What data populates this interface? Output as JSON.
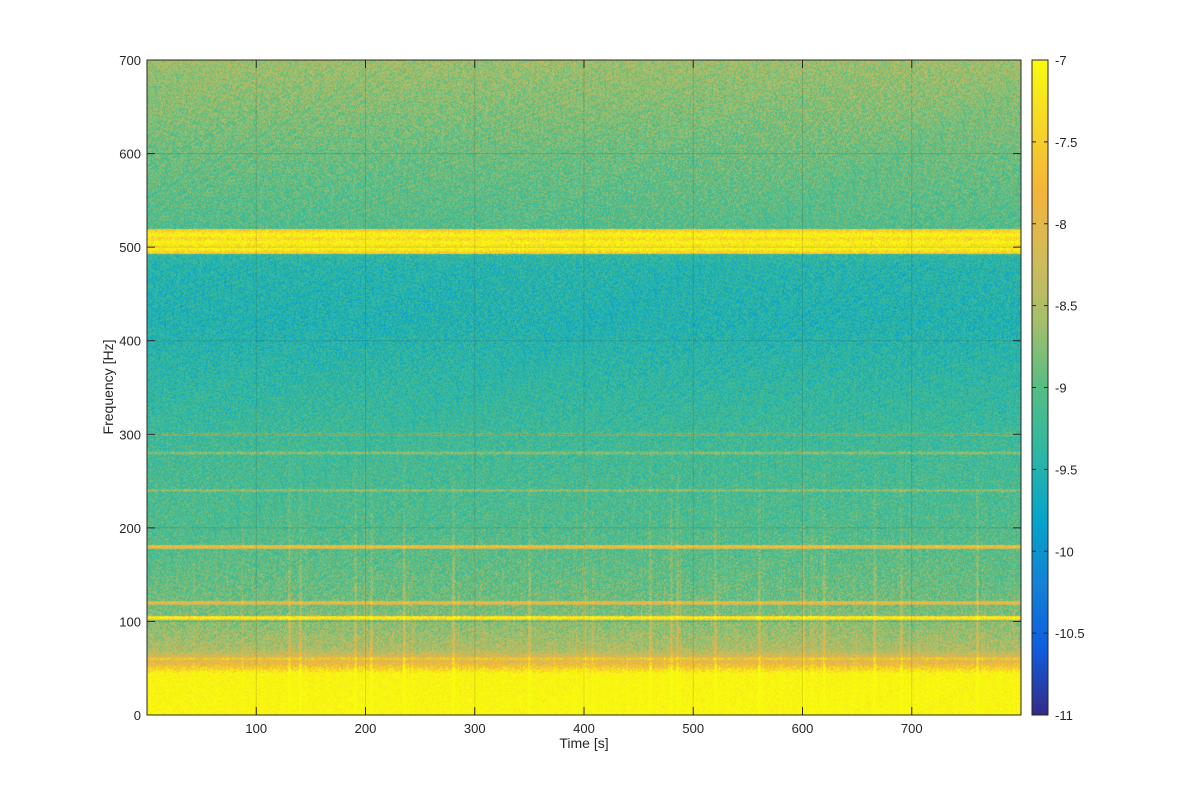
{
  "chart_data": {
    "type": "heatmap",
    "title": "",
    "xlabel": "Time [s]",
    "ylabel": "Frequency [Hz]",
    "xlim": [
      0,
      800
    ],
    "ylim": [
      0,
      700
    ],
    "x_ticks": [
      100,
      200,
      300,
      400,
      500,
      600,
      700
    ],
    "y_ticks": [
      0,
      100,
      200,
      300,
      400,
      500,
      600,
      700
    ],
    "x_tick_labels": [
      "100",
      "200",
      "300",
      "400",
      "500",
      "600",
      "700"
    ],
    "y_tick_labels": [
      "0",
      "100",
      "200",
      "300",
      "400",
      "500",
      "600",
      "700"
    ],
    "grid": true,
    "colormap": "parula",
    "colorbar": {
      "range": [
        -11,
        -7
      ],
      "ticks": [
        -11,
        -10.5,
        -10,
        -9.5,
        -9,
        -8.5,
        -8,
        -7.5,
        -7
      ],
      "tick_labels": [
        "-11",
        "-10.5",
        "-10",
        "-9.5",
        "-9",
        "-8.5",
        "-8",
        "-7.5",
        "-7"
      ],
      "placement": "right"
    },
    "frequency_profile": [
      {
        "freq": 0,
        "value": -7.0
      },
      {
        "freq": 45,
        "value": -7.1
      },
      {
        "freq": 55,
        "value": -7.9
      },
      {
        "freq": 70,
        "value": -8.5
      },
      {
        "freq": 120,
        "value": -8.9
      },
      {
        "freq": 200,
        "value": -9.1
      },
      {
        "freq": 280,
        "value": -9.2
      },
      {
        "freq": 350,
        "value": -9.35
      },
      {
        "freq": 420,
        "value": -9.5
      },
      {
        "freq": 480,
        "value": -9.45
      },
      {
        "freq": 525,
        "value": -9.05
      },
      {
        "freq": 600,
        "value": -8.9
      },
      {
        "freq": 650,
        "value": -8.75
      },
      {
        "freq": 700,
        "value": -8.6
      }
    ],
    "spectral_lines": [
      {
        "freq": 60,
        "value": -7.5
      },
      {
        "freq": 104,
        "value": -7.0
      },
      {
        "freq": 120,
        "value": -7.8
      },
      {
        "freq": 180,
        "value": -7.7
      },
      {
        "freq": 240,
        "value": -8.6
      },
      {
        "freq": 280,
        "value": -8.6
      },
      {
        "freq": 300,
        "value": -8.7
      },
      {
        "freq": 499,
        "value": -7.0
      },
      {
        "freq": 505,
        "value": -7.0
      },
      {
        "freq": 513,
        "value": -7.0
      }
    ],
    "transients_s": [
      130,
      140,
      190,
      205,
      235,
      280,
      350,
      400,
      460,
      480,
      485,
      520,
      560,
      600,
      620,
      665,
      690,
      760
    ]
  }
}
